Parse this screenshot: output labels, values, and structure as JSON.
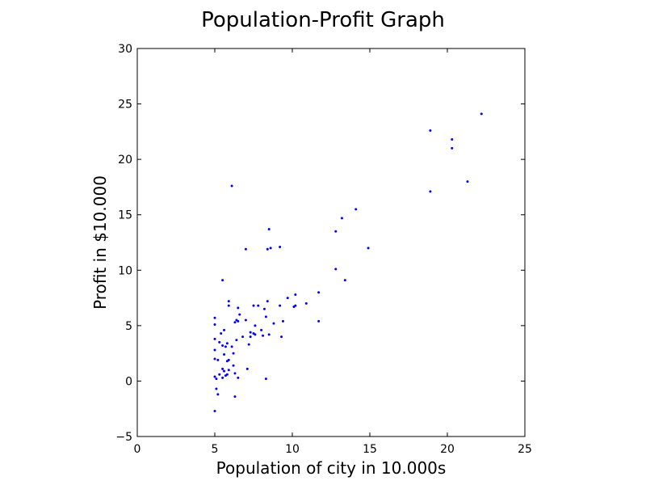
{
  "chart_data": {
    "type": "scatter",
    "title": "Population-Profit Graph",
    "xlabel": "Population of city in 10.000s",
    "ylabel": "Profit in $10.000",
    "xlim": [
      0,
      25
    ],
    "ylim": [
      -5,
      30
    ],
    "xticks": [
      0,
      5,
      10,
      15,
      20,
      25
    ],
    "yticks": [
      -5,
      0,
      5,
      10,
      15,
      20,
      25,
      30
    ],
    "xtick_labels": [
      "0",
      "5",
      "10",
      "15",
      "20",
      "25"
    ],
    "ytick_labels": [
      "−5",
      "0",
      "5",
      "10",
      "15",
      "20",
      "25",
      "30"
    ],
    "grid": false,
    "marker_color": "#0000ff",
    "series": [
      {
        "points": [
          [
            5.0,
            -2.7
          ],
          [
            5.1,
            -0.7
          ],
          [
            5.2,
            -1.2
          ],
          [
            5.0,
            0.4
          ],
          [
            5.1,
            0.2
          ],
          [
            5.3,
            0.6
          ],
          [
            5.5,
            0.3
          ],
          [
            5.7,
            0.5
          ],
          [
            5.6,
            0.9
          ],
          [
            5.8,
            0.6
          ],
          [
            5.9,
            1.0
          ],
          [
            5.0,
            2.0
          ],
          [
            5.2,
            1.9
          ],
          [
            5.5,
            1.1
          ],
          [
            5.6,
            2.4
          ],
          [
            5.8,
            1.8
          ],
          [
            5.9,
            1.9
          ],
          [
            6.2,
            1.4
          ],
          [
            6.3,
            0.7
          ],
          [
            6.5,
            0.3
          ],
          [
            6.3,
            -1.4
          ],
          [
            5.0,
            2.8
          ],
          [
            5.0,
            3.8
          ],
          [
            5.3,
            3.5
          ],
          [
            5.5,
            3.2
          ],
          [
            5.7,
            3.1
          ],
          [
            5.8,
            3.4
          ],
          [
            6.1,
            3.1
          ],
          [
            6.2,
            2.5
          ],
          [
            6.4,
            3.7
          ],
          [
            5.0,
            5.1
          ],
          [
            5.0,
            5.7
          ],
          [
            5.4,
            4.3
          ],
          [
            5.6,
            4.6
          ],
          [
            5.9,
            7.2
          ],
          [
            5.9,
            6.8
          ],
          [
            5.5,
            9.1
          ],
          [
            6.1,
            17.6
          ],
          [
            6.3,
            5.3
          ],
          [
            6.4,
            5.5
          ],
          [
            6.5,
            5.4
          ],
          [
            6.6,
            6.0
          ],
          [
            6.5,
            6.6
          ],
          [
            6.8,
            4.0
          ],
          [
            7.0,
            5.5
          ],
          [
            7.0,
            11.9
          ],
          [
            7.1,
            1.1
          ],
          [
            7.2,
            3.3
          ],
          [
            7.3,
            4.0
          ],
          [
            7.3,
            4.4
          ],
          [
            7.5,
            4.3
          ],
          [
            7.6,
            4.2
          ],
          [
            7.6,
            5.0
          ],
          [
            7.5,
            6.8
          ],
          [
            7.8,
            6.8
          ],
          [
            8.0,
            4.6
          ],
          [
            8.1,
            4.1
          ],
          [
            8.2,
            6.5
          ],
          [
            8.3,
            5.8
          ],
          [
            8.3,
            0.2
          ],
          [
            8.4,
            7.2
          ],
          [
            8.5,
            4.2
          ],
          [
            8.4,
            11.9
          ],
          [
            8.6,
            12.0
          ],
          [
            8.5,
            13.7
          ],
          [
            8.8,
            5.2
          ],
          [
            9.2,
            6.8
          ],
          [
            9.2,
            12.1
          ],
          [
            9.3,
            4.0
          ],
          [
            9.4,
            5.4
          ],
          [
            9.7,
            7.5
          ],
          [
            10.1,
            6.7
          ],
          [
            10.2,
            6.8
          ],
          [
            10.2,
            7.8
          ],
          [
            10.9,
            7.0
          ],
          [
            11.7,
            8.0
          ],
          [
            11.7,
            5.4
          ],
          [
            12.8,
            10.1
          ],
          [
            12.8,
            13.5
          ],
          [
            13.2,
            14.7
          ],
          [
            13.4,
            9.1
          ],
          [
            14.1,
            15.5
          ],
          [
            14.9,
            12.0
          ],
          [
            18.9,
            22.6
          ],
          [
            18.9,
            17.1
          ],
          [
            20.3,
            21.8
          ],
          [
            20.3,
            21.0
          ],
          [
            21.3,
            18.0
          ],
          [
            22.2,
            24.1
          ]
        ]
      }
    ]
  }
}
